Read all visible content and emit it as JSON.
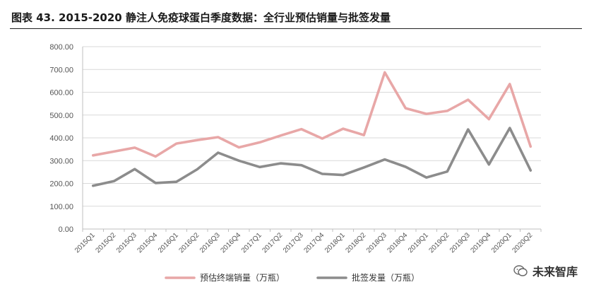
{
  "title": "图表 43. 2015-2020 静注人免疫球蛋白季度数据：全行业预估销量与批签发量",
  "watermark_text": "未来智库",
  "colors": {
    "sales": "#e8a7a7",
    "issuance": "#8c8c8c",
    "grid": "#d9d9d9",
    "axis": "#bfbfbf"
  },
  "chart_data": {
    "type": "line",
    "categories": [
      "2015Q1",
      "2015Q2",
      "2015Q3",
      "2015Q4",
      "2016Q1",
      "2016Q2",
      "2016Q3",
      "2016Q4",
      "2017Q1",
      "2017Q2",
      "2017Q3",
      "2017Q4",
      "2018Q1",
      "2018Q2",
      "2018Q3",
      "2018Q4",
      "2019Q1",
      "2019Q2",
      "2019Q3",
      "2019Q4",
      "2020Q1",
      "2020Q2"
    ],
    "y_ticks": [
      "0.00",
      "100.00",
      "200.00",
      "300.00",
      "400.00",
      "500.00",
      "600.00",
      "700.00",
      "800.00"
    ],
    "ylim": [
      0,
      800
    ],
    "grid": true,
    "legend_position": "bottom",
    "series": [
      {
        "name": "预估终端销量（万瓶）",
        "values": [
          323,
          340,
          357,
          318,
          375,
          390,
          403,
          358,
          380,
          410,
          438,
          397,
          440,
          412,
          687,
          530,
          505,
          518,
          567,
          482,
          636,
          362
        ]
      },
      {
        "name": "批签发量（万瓶）",
        "values": [
          190,
          210,
          263,
          202,
          207,
          262,
          335,
          300,
          272,
          288,
          280,
          242,
          237,
          270,
          305,
          273,
          226,
          252,
          437,
          283,
          443,
          257
        ]
      }
    ]
  }
}
